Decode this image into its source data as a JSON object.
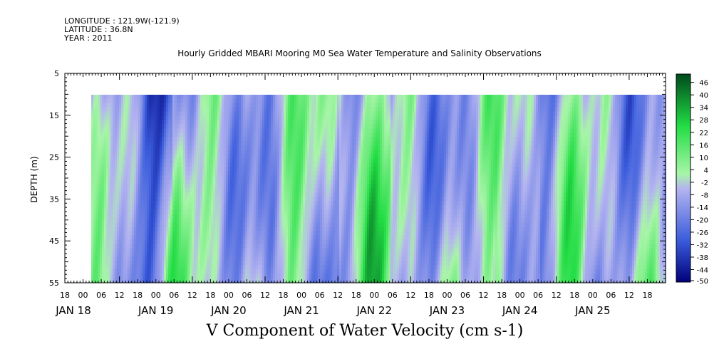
{
  "header": {
    "longitude": "LONGITUDE : 121.9W(-121.9)",
    "latitude": "LATITUDE : 36.8N",
    "year": "YEAR : 2011"
  },
  "chart_data": {
    "type": "heatmap",
    "title": "Hourly Gridded MBARI Mooring M0 Sea Water Temperature and Salinity Observations",
    "xlabel": "V Component of Water Velocity (cm s-1)",
    "ylabel": "DEPTH (m)",
    "yticks": [
      "5",
      "15",
      "25",
      "35",
      "45",
      "55"
    ],
    "yrange": [
      5,
      55
    ],
    "y_reversed": true,
    "data_depth_range": [
      10,
      55
    ],
    "xrange_hours": [
      0,
      198
    ],
    "hour_ticks": [
      "18",
      "00",
      "06",
      "12",
      "18",
      "00",
      "06",
      "12",
      "18",
      "00",
      "06",
      "12",
      "18",
      "00",
      "06",
      "12",
      "18",
      "00",
      "06",
      "12",
      "18",
      "00",
      "06",
      "12",
      "18",
      "00",
      "06",
      "12",
      "18",
      "00",
      "06",
      "12",
      "18"
    ],
    "day_labels": [
      "JAN 18",
      "JAN 19",
      "JAN 20",
      "JAN 21",
      "JAN 22",
      "JAN 23",
      "JAN 24",
      "JAN 25"
    ],
    "colorbar": {
      "levels": [
        "46",
        "40",
        "34",
        "28",
        "22",
        "16",
        "10",
        "4",
        "-2",
        "-8",
        "-14",
        "-20",
        "-26",
        "-32",
        "-38",
        "-44",
        "-50"
      ],
      "range": [
        -50,
        50
      ]
    },
    "grid": false,
    "legend": "right colorbar"
  },
  "colors": {
    "negative_dark": "#000080",
    "negative_mid": "#3a5cdc",
    "negative_light": "#b4b4f0",
    "positive_light": "#a8f5a8",
    "positive_mid": "#22dd44",
    "positive_dark": "#005020"
  }
}
